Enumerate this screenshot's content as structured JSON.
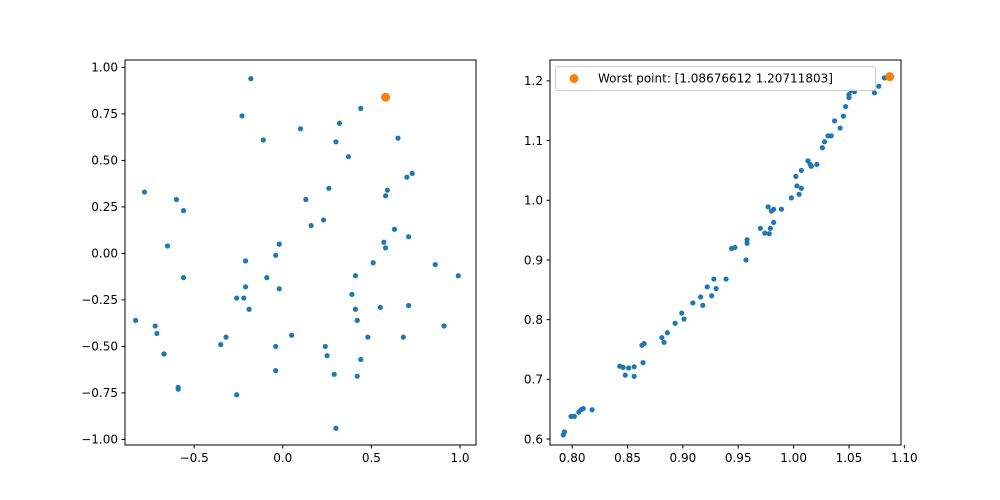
{
  "chart_data": [
    {
      "type": "scatter",
      "title": "",
      "xlabel": "",
      "ylabel": "",
      "xlim": [
        -0.89,
        1.09
      ],
      "ylim": [
        -1.03,
        1.04
      ],
      "xticks": [
        -0.5,
        0.0,
        0.5,
        1.0
      ],
      "xtick_labels": [
        "−0.5",
        "0.0",
        "0.5",
        "1.0"
      ],
      "yticks": [
        -1.0,
        -0.75,
        -0.5,
        -0.25,
        0.0,
        0.25,
        0.5,
        0.75,
        1.0
      ],
      "ytick_labels": [
        "−1.00",
        "−0.75",
        "−0.50",
        "−0.25",
        "0.00",
        "0.25",
        "0.50",
        "0.75",
        "1.00"
      ],
      "grid": false,
      "legend": "none",
      "series": [
        {
          "color": "#1f77b4",
          "marker_size": "small",
          "points": [
            [
              -0.18,
              0.94
            ],
            [
              -0.23,
              0.74
            ],
            [
              -0.11,
              0.61
            ],
            [
              0.1,
              0.67
            ],
            [
              0.32,
              0.7
            ],
            [
              0.44,
              0.78
            ],
            [
              0.3,
              0.6
            ],
            [
              0.37,
              0.52
            ],
            [
              0.65,
              0.62
            ],
            [
              0.73,
              0.43
            ],
            [
              0.7,
              0.41
            ],
            [
              0.59,
              0.34
            ],
            [
              0.58,
              0.31
            ],
            [
              -0.78,
              0.33
            ],
            [
              -0.6,
              0.29
            ],
            [
              -0.56,
              0.23
            ],
            [
              0.26,
              0.35
            ],
            [
              0.13,
              0.29
            ],
            [
              0.23,
              0.18
            ],
            [
              0.16,
              0.15
            ],
            [
              0.63,
              0.13
            ],
            [
              0.71,
              0.09
            ],
            [
              0.57,
              0.06
            ],
            [
              0.58,
              0.03
            ],
            [
              -0.65,
              0.04
            ],
            [
              -0.02,
              0.05
            ],
            [
              -0.04,
              -0.01
            ],
            [
              -0.21,
              -0.04
            ],
            [
              0.51,
              -0.05
            ],
            [
              0.86,
              -0.06
            ],
            [
              0.99,
              -0.12
            ],
            [
              -0.56,
              -0.13
            ],
            [
              -0.09,
              -0.13
            ],
            [
              0.41,
              -0.12
            ],
            [
              -0.21,
              -0.18
            ],
            [
              -0.02,
              -0.19
            ],
            [
              0.39,
              -0.22
            ],
            [
              -0.26,
              -0.24
            ],
            [
              -0.22,
              -0.24
            ],
            [
              -0.19,
              -0.3
            ],
            [
              0.55,
              -0.29
            ],
            [
              0.71,
              -0.28
            ],
            [
              0.41,
              -0.3
            ],
            [
              -0.83,
              -0.36
            ],
            [
              -0.72,
              -0.39
            ],
            [
              -0.71,
              -0.43
            ],
            [
              0.42,
              -0.36
            ],
            [
              0.91,
              -0.39
            ],
            [
              0.05,
              -0.44
            ],
            [
              -0.32,
              -0.45
            ],
            [
              0.48,
              -0.45
            ],
            [
              0.68,
              -0.45
            ],
            [
              -0.35,
              -0.49
            ],
            [
              -0.04,
              -0.5
            ],
            [
              0.24,
              -0.5
            ],
            [
              -0.67,
              -0.54
            ],
            [
              0.25,
              -0.55
            ],
            [
              0.44,
              -0.57
            ],
            [
              -0.04,
              -0.63
            ],
            [
              0.29,
              -0.65
            ],
            [
              0.42,
              -0.66
            ],
            [
              -0.59,
              -0.72
            ],
            [
              -0.59,
              -0.73
            ],
            [
              -0.26,
              -0.76
            ],
            [
              0.3,
              -0.94
            ]
          ]
        },
        {
          "color": "#ff7f0e",
          "marker_size": "large",
          "points": [
            [
              0.58,
              0.84
            ]
          ]
        }
      ]
    },
    {
      "type": "scatter",
      "title": "",
      "xlabel": "",
      "ylabel": "",
      "xlim": [
        0.78,
        1.097
      ],
      "ylim": [
        0.59,
        1.235
      ],
      "xticks": [
        0.8,
        0.85,
        0.9,
        0.95,
        1.0,
        1.05,
        1.1
      ],
      "xtick_labels": [
        "0.80",
        "0.85",
        "0.90",
        "0.95",
        "1.00",
        "1.05",
        "1.10"
      ],
      "yticks": [
        0.6,
        0.7,
        0.8,
        0.9,
        1.0,
        1.1,
        1.2
      ],
      "ytick_labels": [
        "0.6",
        "0.7",
        "0.8",
        "0.9",
        "1.0",
        "1.1",
        "1.2"
      ],
      "grid": false,
      "legend": "top",
      "series": [
        {
          "color": "#1f77b4",
          "marker_size": "small",
          "points": [
            [
              0.792,
              0.607
            ],
            [
              0.793,
              0.612
            ],
            [
              0.799,
              0.638
            ],
            [
              0.802,
              0.638
            ],
            [
              0.806,
              0.645
            ],
            [
              0.808,
              0.649
            ],
            [
              0.81,
              0.651
            ],
            [
              0.818,
              0.649
            ],
            [
              0.843,
              0.722
            ],
            [
              0.846,
              0.72
            ],
            [
              0.848,
              0.707
            ],
            [
              0.851,
              0.719
            ],
            [
              0.856,
              0.721
            ],
            [
              0.856,
              0.705
            ],
            [
              0.863,
              0.757
            ],
            [
              0.864,
              0.728
            ],
            [
              0.865,
              0.76
            ],
            [
              0.881,
              0.77
            ],
            [
              0.883,
              0.762
            ],
            [
              0.886,
              0.778
            ],
            [
              0.893,
              0.794
            ],
            [
              0.899,
              0.811
            ],
            [
              0.901,
              0.801
            ],
            [
              0.909,
              0.828
            ],
            [
              0.916,
              0.838
            ],
            [
              0.918,
              0.824
            ],
            [
              0.922,
              0.855
            ],
            [
              0.926,
              0.84
            ],
            [
              0.928,
              0.868
            ],
            [
              0.93,
              0.852
            ],
            [
              0.939,
              0.868
            ],
            [
              0.944,
              0.919
            ],
            [
              0.947,
              0.921
            ],
            [
              0.957,
              0.9
            ],
            [
              0.958,
              0.928
            ],
            [
              0.958,
              0.934
            ],
            [
              0.97,
              0.953
            ],
            [
              0.974,
              0.945
            ],
            [
              0.977,
              0.989
            ],
            [
              0.978,
              0.944
            ],
            [
              0.979,
              0.953
            ],
            [
              0.98,
              0.982
            ],
            [
              0.982,
              0.985
            ],
            [
              0.982,
              0.963
            ],
            [
              0.989,
              0.985
            ],
            [
              0.998,
              1.004
            ],
            [
              1.002,
              1.04
            ],
            [
              1.003,
              1.024
            ],
            [
              1.005,
              1.01
            ],
            [
              1.007,
              1.05
            ],
            [
              1.007,
              1.02
            ],
            [
              1.013,
              1.066
            ],
            [
              1.015,
              1.06
            ],
            [
              1.016,
              1.057
            ],
            [
              1.021,
              1.06
            ],
            [
              1.026,
              1.088
            ],
            [
              1.028,
              1.098
            ],
            [
              1.031,
              1.108
            ],
            [
              1.034,
              1.108
            ],
            [
              1.037,
              1.133
            ],
            [
              1.042,
              1.121
            ],
            [
              1.045,
              1.141
            ],
            [
              1.047,
              1.157
            ],
            [
              1.05,
              1.172
            ],
            [
              1.05,
              1.177
            ],
            [
              1.052,
              1.184
            ],
            [
              1.055,
              1.182
            ],
            [
              1.073,
              1.18
            ],
            [
              1.077,
              1.191
            ],
            [
              1.082,
              1.205
            ]
          ]
        },
        {
          "name": "Worst point: [1.08676612 1.20711803]",
          "color": "#ff7f0e",
          "marker_size": "large",
          "points": [
            [
              1.08676612,
              1.20711803
            ]
          ]
        }
      ]
    }
  ]
}
